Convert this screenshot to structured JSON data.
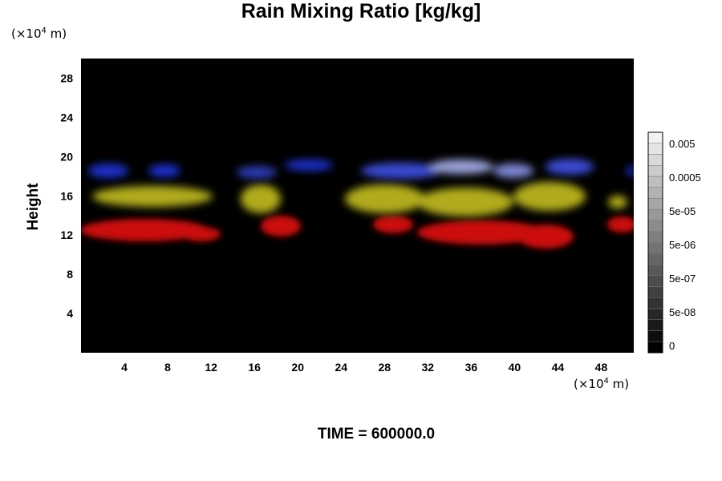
{
  "chart_data": {
    "type": "heatmap",
    "title": "Rain Mixing Ratio [kg/kg]",
    "ylabel": "Height",
    "xlabel": "",
    "x_unit_prefix": "(×10",
    "unit_exponent": "4",
    "x_unit_suffix": " m)",
    "y_unit_prefix": "(×10",
    "y_unit_suffix": " m)",
    "x_ticks": [
      "4",
      "8",
      "12",
      "16",
      "20",
      "24",
      "28",
      "32",
      "36",
      "40",
      "44",
      "48"
    ],
    "y_ticks": [
      "4",
      "8",
      "12",
      "16",
      "20",
      "24",
      "28"
    ],
    "xlim": [
      0,
      51
    ],
    "ylim": [
      0,
      30
    ],
    "background_color": "#000000",
    "colorbar": {
      "labels": [
        "0.005",
        "0.0005",
        "5e-05",
        "5e-06",
        "5e-07",
        "5e-08",
        "0"
      ],
      "levels": 20,
      "color_low": "#000000",
      "color_high": "#f2f2f2"
    },
    "rain_layers": [
      {
        "color": "#1e2fc8",
        "height_range": [
          17,
          19.5
        ]
      },
      {
        "color": "#b8b020",
        "height_range": [
          14,
          17
        ]
      },
      {
        "color": "#cc0f0f",
        "height_range": [
          11,
          14
        ]
      }
    ],
    "footer": "TIME = 600000.0"
  }
}
